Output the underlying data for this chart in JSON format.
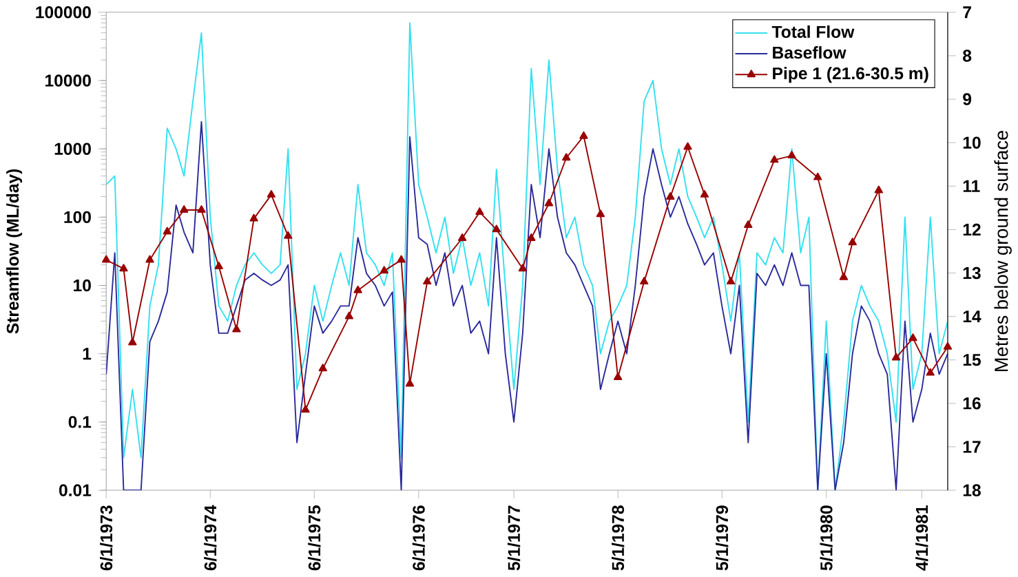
{
  "chart_data": {
    "type": "line",
    "ylabel": "Streamflow (ML/day)",
    "y2label": "Metres below ground surface",
    "xlim": [
      "1973-06-01",
      "1981-07-01"
    ],
    "xticks": [
      {
        "value": "1973-06-01",
        "label": "6/1/1973"
      },
      {
        "value": "1974-06-01",
        "label": "6/1/1974"
      },
      {
        "value": "1975-06-01",
        "label": "6/1/1975"
      },
      {
        "value": "1976-06-01",
        "label": "6/1/1976"
      },
      {
        "value": "1977-05-01",
        "label": "5/1/1977"
      },
      {
        "value": "1978-05-01",
        "label": "5/1/1978"
      },
      {
        "value": "1979-05-01",
        "label": "5/1/1979"
      },
      {
        "value": "1980-05-01",
        "label": "5/1/1980"
      },
      {
        "value": "1981-04-01",
        "label": "4/1/1981"
      }
    ],
    "log": "y",
    "ylim": [
      0.01,
      100000
    ],
    "yticks": [
      0.01,
      0.1,
      1,
      10,
      100,
      1000,
      10000,
      100000
    ],
    "y2lim": [
      18,
      7
    ],
    "y2ticks": [
      7,
      8,
      9,
      10,
      11,
      12,
      13,
      14,
      15,
      16,
      17,
      18
    ],
    "legend": "top right",
    "series": [
      {
        "name": "Total Flow",
        "color": "#33e0f0",
        "x": [
          "1973-06",
          "1973-07",
          "1973-08",
          "1973-09",
          "1973-10",
          "1973-11",
          "1973-12",
          "1974-01",
          "1974-02",
          "1974-03",
          "1974-04",
          "1974-05",
          "1974-06",
          "1974-07",
          "1974-08",
          "1974-09",
          "1974-10",
          "1974-11",
          "1974-12",
          "1975-01",
          "1975-02",
          "1975-03",
          "1975-04",
          "1975-05",
          "1975-06",
          "1975-07",
          "1975-08",
          "1975-09",
          "1975-10",
          "1975-11",
          "1975-12",
          "1976-01",
          "1976-02",
          "1976-03",
          "1976-04",
          "1976-05",
          "1976-06",
          "1976-07",
          "1976-08",
          "1976-09",
          "1976-10",
          "1976-11",
          "1976-12",
          "1977-01",
          "1977-02",
          "1977-03",
          "1977-04",
          "1977-05",
          "1977-06",
          "1977-07",
          "1977-08",
          "1977-09",
          "1977-10",
          "1977-11",
          "1977-12",
          "1978-01",
          "1978-02",
          "1978-03",
          "1978-04",
          "1978-05",
          "1978-06",
          "1978-07",
          "1978-08",
          "1978-09",
          "1978-10",
          "1978-11",
          "1978-12",
          "1979-01",
          "1979-02",
          "1979-03",
          "1979-04",
          "1979-05",
          "1979-06",
          "1979-07",
          "1979-08",
          "1979-09",
          "1979-10",
          "1979-11",
          "1979-12",
          "1980-01",
          "1980-02",
          "1980-03",
          "1980-04",
          "1980-05",
          "1980-06",
          "1980-07",
          "1980-08",
          "1980-09",
          "1980-10",
          "1980-11",
          "1980-12",
          "1981-01",
          "1981-02",
          "1981-03",
          "1981-04",
          "1981-05",
          "1981-06",
          "1981-07"
        ],
        "values": [
          300,
          400,
          0.03,
          0.3,
          0.03,
          5,
          20,
          2000,
          1000,
          400,
          5000,
          50000,
          100,
          5,
          3,
          10,
          20,
          30,
          20,
          15,
          20,
          1000,
          0.3,
          1,
          10,
          3,
          10,
          30,
          10,
          300,
          30,
          20,
          10,
          30,
          0.03,
          70000,
          300,
          100,
          30,
          100,
          15,
          50,
          10,
          30,
          5,
          500,
          10,
          0.3,
          10,
          15000,
          300,
          20000,
          500,
          50,
          100,
          20,
          10,
          1,
          3,
          5,
          10,
          100,
          5000,
          10000,
          1000,
          300,
          1000,
          200,
          100,
          50,
          100,
          20,
          3,
          30,
          0.1,
          30,
          20,
          50,
          30,
          1000,
          30,
          100,
          0.01,
          3,
          0.01,
          0.1,
          3,
          10,
          5,
          3,
          1,
          0.1,
          100,
          0.3,
          1,
          100,
          1,
          3
        ]
      },
      {
        "name": "Baseflow",
        "color": "#2a2a9a",
        "x": [
          "1973-06",
          "1973-07",
          "1973-08",
          "1973-09",
          "1973-10",
          "1973-11",
          "1973-12",
          "1974-01",
          "1974-02",
          "1974-03",
          "1974-04",
          "1974-05",
          "1974-06",
          "1974-07",
          "1974-08",
          "1974-09",
          "1974-10",
          "1974-11",
          "1974-12",
          "1975-01",
          "1975-02",
          "1975-03",
          "1975-04",
          "1975-05",
          "1975-06",
          "1975-07",
          "1975-08",
          "1975-09",
          "1975-10",
          "1975-11",
          "1975-12",
          "1976-01",
          "1976-02",
          "1976-03",
          "1976-04",
          "1976-05",
          "1976-06",
          "1976-07",
          "1976-08",
          "1976-09",
          "1976-10",
          "1976-11",
          "1976-12",
          "1977-01",
          "1977-02",
          "1977-03",
          "1977-04",
          "1977-05",
          "1977-06",
          "1977-07",
          "1977-08",
          "1977-09",
          "1977-10",
          "1977-11",
          "1977-12",
          "1978-01",
          "1978-02",
          "1978-03",
          "1978-04",
          "1978-05",
          "1978-06",
          "1978-07",
          "1978-08",
          "1978-09",
          "1978-10",
          "1978-11",
          "1978-12",
          "1979-01",
          "1979-02",
          "1979-03",
          "1979-04",
          "1979-05",
          "1979-06",
          "1979-07",
          "1979-08",
          "1979-09",
          "1979-10",
          "1979-11",
          "1979-12",
          "1980-01",
          "1980-02",
          "1980-03",
          "1980-04",
          "1980-05",
          "1980-06",
          "1980-07",
          "1980-08",
          "1980-09",
          "1980-10",
          "1980-11",
          "1980-12",
          "1981-01",
          "1981-02",
          "1981-03",
          "1981-04",
          "1981-05",
          "1981-06",
          "1981-07"
        ],
        "values": [
          0.5,
          30,
          0.01,
          0.01,
          0.01,
          1.5,
          3,
          8,
          150,
          60,
          30,
          2500,
          20,
          2,
          2,
          5,
          12,
          15,
          12,
          10,
          12,
          20,
          0.05,
          0.5,
          5,
          2,
          3,
          5,
          5,
          50,
          15,
          10,
          5,
          8,
          0.01,
          1500,
          50,
          40,
          10,
          30,
          5,
          10,
          2,
          3,
          1,
          50,
          1,
          0.1,
          2,
          300,
          50,
          1000,
          100,
          30,
          20,
          10,
          5,
          0.3,
          1,
          3,
          1,
          10,
          200,
          1000,
          300,
          100,
          200,
          80,
          40,
          20,
          30,
          5,
          1,
          10,
          0.05,
          15,
          10,
          20,
          10,
          30,
          10,
          10,
          0.01,
          1,
          0.01,
          0.05,
          1,
          5,
          3,
          1,
          0.5,
          0.01,
          3,
          0.1,
          0.3,
          2,
          0.5,
          1
        ]
      },
      {
        "name": "Pipe 1 (21.6-30.5 m)",
        "color": "#990000",
        "axis": "y2",
        "marker": "triangle",
        "x": [
          "1973-06",
          "1973-08",
          "1973-09",
          "1973-11",
          "1974-01",
          "1974-03",
          "1974-05",
          "1974-07",
          "1974-09",
          "1974-11",
          "1975-01",
          "1975-03",
          "1975-05",
          "1975-07",
          "1975-10",
          "1975-11",
          "1976-02",
          "1976-04",
          "1976-05",
          "1976-07",
          "1976-11",
          "1977-01",
          "1977-03",
          "1977-06",
          "1977-07",
          "1977-09",
          "1977-11",
          "1978-01",
          "1978-03",
          "1978-05",
          "1978-08",
          "1978-11",
          "1979-01",
          "1979-03",
          "1979-06",
          "1979-08",
          "1979-11",
          "1980-01",
          "1980-04",
          "1980-07",
          "1980-08",
          "1980-11",
          "1981-01",
          "1981-03",
          "1981-05",
          "1981-07"
        ],
        "values": [
          12.7,
          12.9,
          14.6,
          12.7,
          12.05,
          11.55,
          11.55,
          12.85,
          14.3,
          11.75,
          11.2,
          12.15,
          16.15,
          15.2,
          14.0,
          13.4,
          12.95,
          12.7,
          15.55,
          13.2,
          12.2,
          11.6,
          12.0,
          12.9,
          12.2,
          11.4,
          10.35,
          9.85,
          11.65,
          15.4,
          13.2,
          11.25,
          10.1,
          11.2,
          13.2,
          11.9,
          10.4,
          10.3,
          10.8,
          13.1,
          12.3,
          11.1,
          14.95,
          14.5,
          15.3,
          14.7
        ]
      }
    ]
  }
}
